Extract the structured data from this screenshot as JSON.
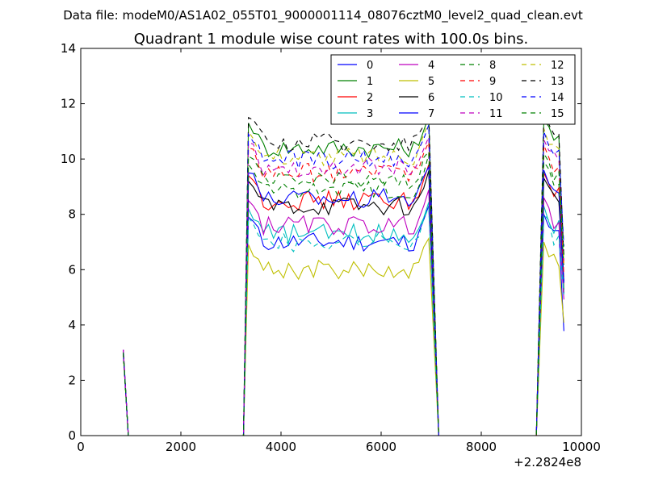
{
  "chart_data": {
    "type": "line",
    "suptitle": "Data file: modeM0/AS1A02_055T01_9000001114_08076cztM0_level2_quad_clean.evt",
    "title": "Quadrant 1 module wise count rates with 100.0s bins.",
    "xlabel": "",
    "ylabel": "",
    "x_offset_label": "+2.2824e8",
    "xlim": [
      0,
      10000
    ],
    "ylim": [
      0,
      14
    ],
    "xticks": [
      0,
      2000,
      4000,
      6000,
      8000,
      10000
    ],
    "yticks": [
      0,
      2,
      4,
      6,
      8,
      10,
      12,
      14
    ],
    "legend_position": "top-right",
    "legend_columns": 4,
    "segments": [
      {
        "x_start": 850,
        "x_end": 950
      },
      {
        "x_start": 3250,
        "x_end": 7150
      },
      {
        "x_start": 9100,
        "x_end": 9650
      }
    ],
    "series": [
      {
        "name": "0",
        "color": "#0000ff",
        "dash": "solid",
        "plateau": 7.0,
        "start": 3.1,
        "end": 6.3
      },
      {
        "name": "1",
        "color": "#008000",
        "dash": "solid",
        "plateau": 10.4,
        "start": 3.0,
        "end": 8.8
      },
      {
        "name": "2",
        "color": "#ff0000",
        "dash": "solid",
        "plateau": 8.5,
        "start": 3.0,
        "end": 8.6
      },
      {
        "name": "3",
        "color": "#00bfbf",
        "dash": "solid",
        "plateau": 7.3,
        "start": 3.0,
        "end": 8.6
      },
      {
        "name": "4",
        "color": "#bf00bf",
        "dash": "solid",
        "plateau": 7.6,
        "start": 3.1,
        "end": 8.2
      },
      {
        "name": "5",
        "color": "#bfbf00",
        "dash": "solid",
        "plateau": 6.0,
        "start": 2.9,
        "end": 6.8
      },
      {
        "name": "6",
        "color": "#000000",
        "dash": "solid",
        "plateau": 8.3,
        "start": 3.0,
        "end": 9.3
      },
      {
        "name": "7",
        "color": "#0000ff",
        "dash": "solid",
        "plateau": 8.6,
        "start": 3.0,
        "end": 9.2
      },
      {
        "name": "8",
        "color": "#008000",
        "dash": "dashed",
        "plateau": 8.9,
        "start": 3.0,
        "end": 10.3
      },
      {
        "name": "9",
        "color": "#ff0000",
        "dash": "dashed",
        "plateau": 9.5,
        "start": 3.0,
        "end": 9.6
      },
      {
        "name": "10",
        "color": "#00bfbf",
        "dash": "dashed",
        "plateau": 7.0,
        "start": 3.0,
        "end": 8.5
      },
      {
        "name": "11",
        "color": "#bf00bf",
        "dash": "dashed",
        "plateau": 9.7,
        "start": 3.1,
        "end": 10.5
      },
      {
        "name": "12",
        "color": "#bfbf00",
        "dash": "dashed",
        "plateau": 10.1,
        "start": 3.0,
        "end": 10.4
      },
      {
        "name": "13",
        "color": "#000000",
        "dash": "dashed",
        "plateau": 10.6,
        "start": 3.0,
        "end": 10.7
      },
      {
        "name": "14",
        "color": "#0000ff",
        "dash": "dashed",
        "plateau": 10.0,
        "start": 3.0,
        "end": 11.4
      },
      {
        "name": "15",
        "color": "#008000",
        "dash": "dashed",
        "plateau": 9.2,
        "start": 3.0,
        "end": 10.9
      }
    ]
  }
}
